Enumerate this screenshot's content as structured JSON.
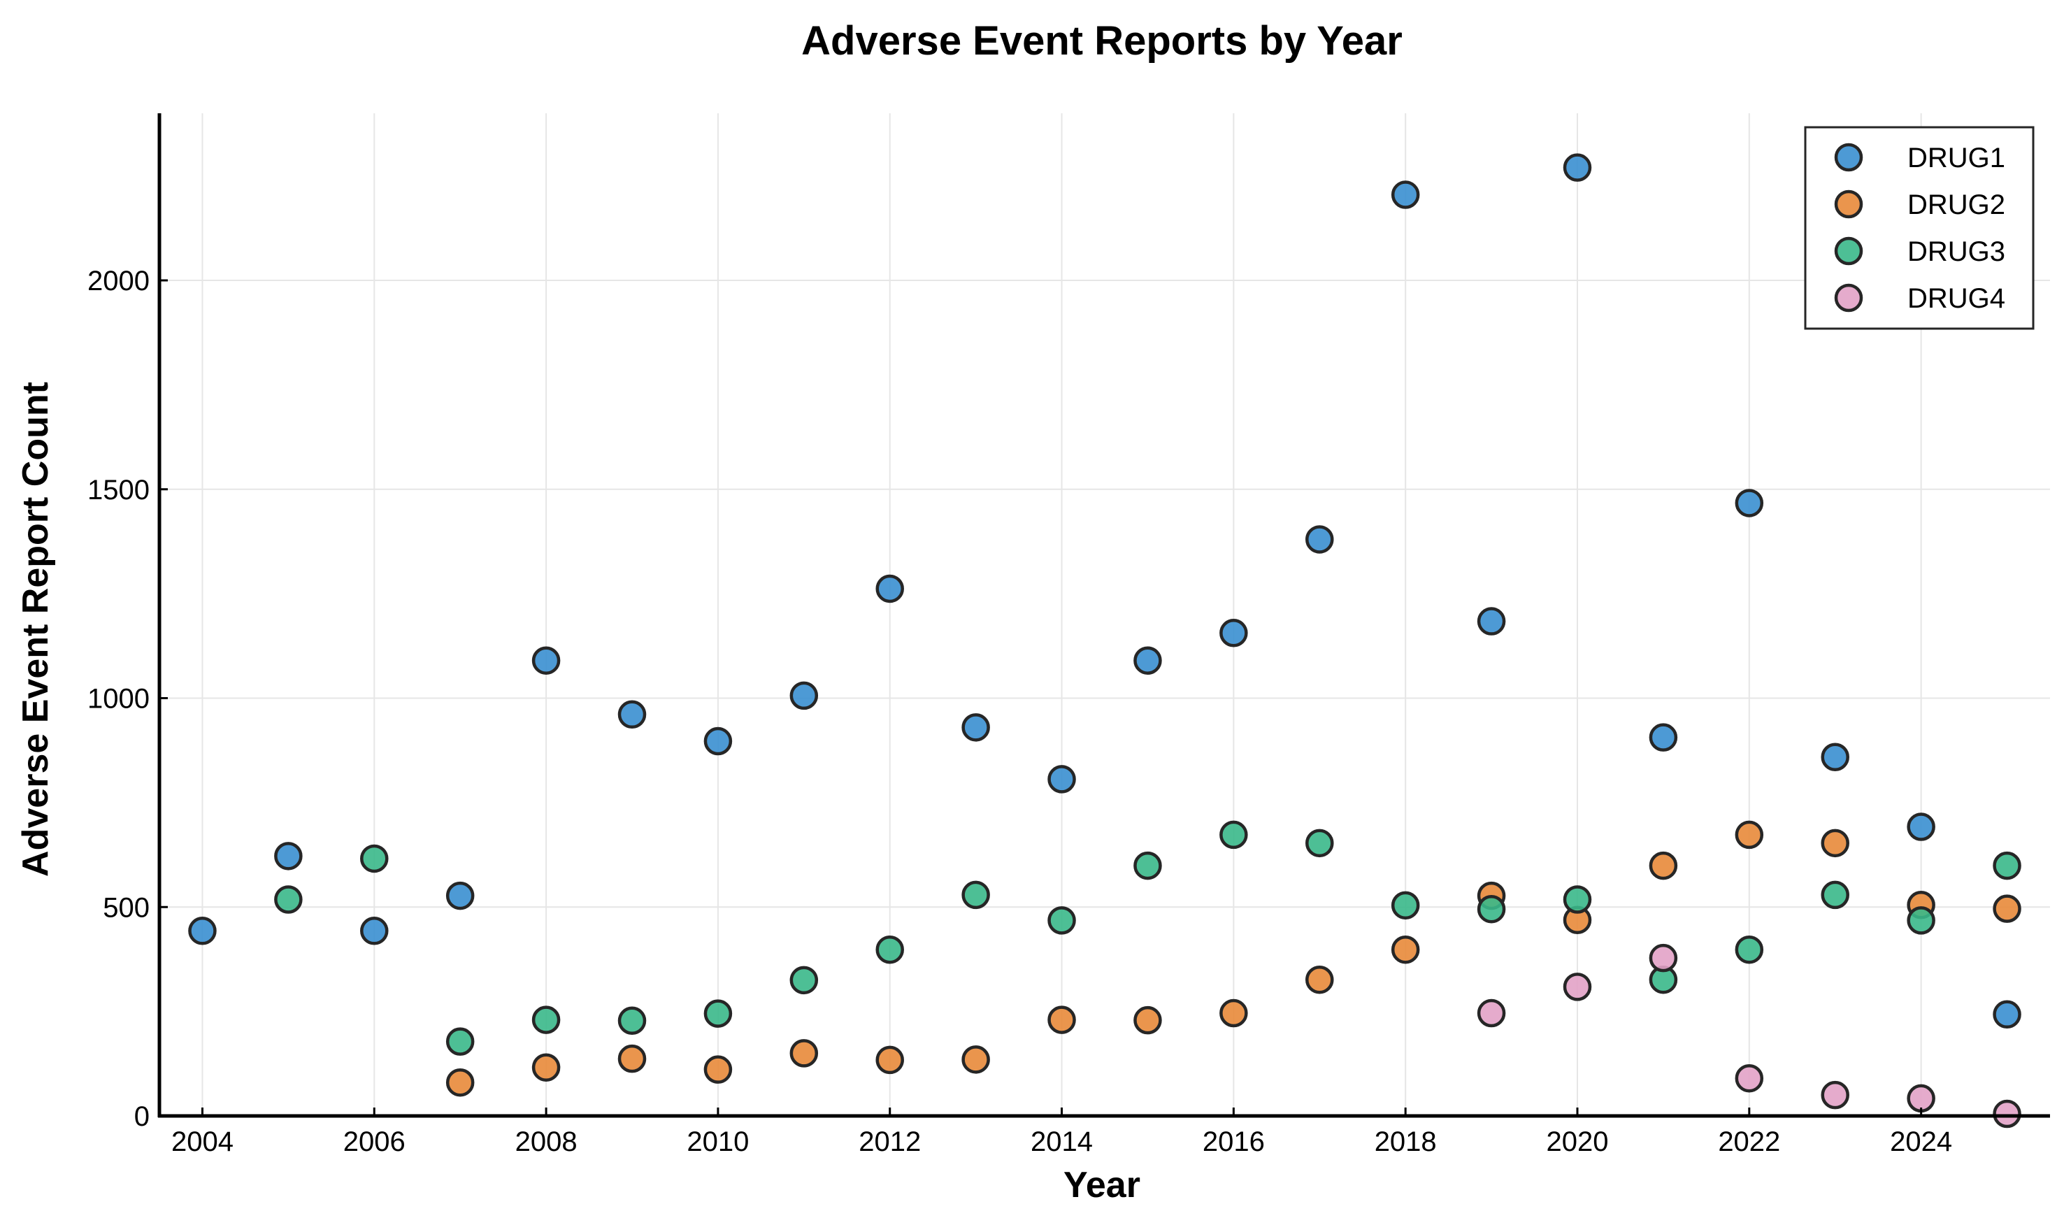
{
  "chart_data": {
    "type": "scatter",
    "title": "Adverse Event Reports by Year",
    "xlabel": "Year",
    "ylabel": "Adverse Event Report Count",
    "xlim": [
      2003.5,
      2025.5
    ],
    "ylim": [
      0,
      2400
    ],
    "xticks": [
      2004,
      2006,
      2008,
      2010,
      2012,
      2014,
      2016,
      2018,
      2020,
      2022,
      2024
    ],
    "yticks": [
      0,
      500,
      1000,
      1500,
      2000
    ],
    "grid": true,
    "legend_position": "top-right",
    "series": [
      {
        "name": "DRUG1",
        "color": "#3a8fd0",
        "points": [
          [
            2004,
            443
          ],
          [
            2005,
            622
          ],
          [
            2006,
            443
          ],
          [
            2007,
            527
          ],
          [
            2008,
            1090
          ],
          [
            2009,
            961
          ],
          [
            2010,
            897
          ],
          [
            2011,
            1006
          ],
          [
            2012,
            1262
          ],
          [
            2013,
            930
          ],
          [
            2014,
            806
          ],
          [
            2015,
            1090
          ],
          [
            2016,
            1156
          ],
          [
            2017,
            1380
          ],
          [
            2018,
            2205
          ],
          [
            2019,
            1184
          ],
          [
            2020,
            2270
          ],
          [
            2021,
            906
          ],
          [
            2022,
            1467
          ],
          [
            2023,
            859
          ],
          [
            2024,
            692
          ],
          [
            2025,
            243
          ]
        ]
      },
      {
        "name": "DRUG2",
        "color": "#e8893a",
        "points": [
          [
            2007,
            80
          ],
          [
            2008,
            116
          ],
          [
            2009,
            137
          ],
          [
            2010,
            111
          ],
          [
            2011,
            150
          ],
          [
            2012,
            134
          ],
          [
            2013,
            135
          ],
          [
            2014,
            230
          ],
          [
            2015,
            229
          ],
          [
            2016,
            246
          ],
          [
            2017,
            326
          ],
          [
            2018,
            398
          ],
          [
            2019,
            527
          ],
          [
            2020,
            469
          ],
          [
            2021,
            599
          ],
          [
            2022,
            673
          ],
          [
            2023,
            653
          ],
          [
            2024,
            505
          ],
          [
            2025,
            496
          ]
        ]
      },
      {
        "name": "DRUG3",
        "color": "#3ab88a",
        "points": [
          [
            2005,
            518
          ],
          [
            2006,
            616
          ],
          [
            2007,
            178
          ],
          [
            2008,
            230
          ],
          [
            2009,
            228
          ],
          [
            2010,
            245
          ],
          [
            2011,
            325
          ],
          [
            2012,
            398
          ],
          [
            2013,
            529
          ],
          [
            2014,
            468
          ],
          [
            2015,
            599
          ],
          [
            2016,
            673
          ],
          [
            2017,
            653
          ],
          [
            2018,
            504
          ],
          [
            2019,
            495
          ],
          [
            2020,
            518
          ],
          [
            2021,
            326
          ],
          [
            2022,
            398
          ],
          [
            2023,
            529
          ],
          [
            2024,
            468
          ],
          [
            2025,
            599
          ]
        ]
      },
      {
        "name": "DRUG4",
        "color": "#e2a2c6",
        "points": [
          [
            2019,
            246
          ],
          [
            2020,
            309
          ],
          [
            2021,
            378
          ],
          [
            2022,
            90
          ],
          [
            2023,
            50
          ],
          [
            2024,
            42
          ],
          [
            2025,
            5
          ]
        ]
      }
    ]
  }
}
